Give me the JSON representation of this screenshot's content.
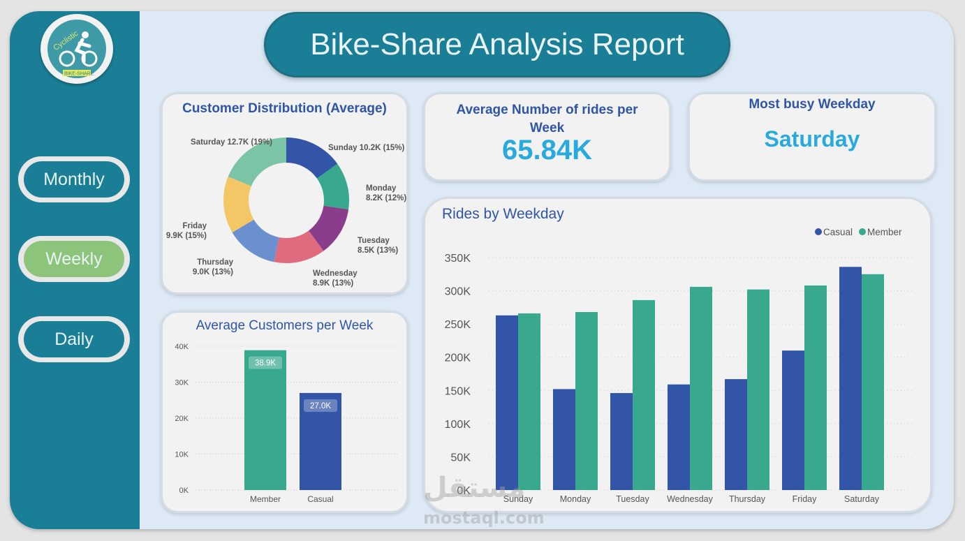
{
  "logo": {
    "text_top": "Cyclistic",
    "text_bottom": "BIKE-SHARE"
  },
  "header": {
    "title": "Bike-Share Analysis Report"
  },
  "nav": [
    {
      "label": "Monthly",
      "active": false
    },
    {
      "label": "Weekly",
      "active": true
    },
    {
      "label": "Daily",
      "active": false
    }
  ],
  "kpis": {
    "avg_rides_title": "Average Number of rides per Week",
    "avg_rides_value": "65.84K",
    "busy_title": "Most busy Weekday",
    "busy_value": "Saturday"
  },
  "watermark": {
    "text_ar": "مستقل",
    "text": "mostaql.com"
  },
  "colors": {
    "sidebar": "#1a7f96",
    "casual": "#3355a8",
    "member": "#38a88f",
    "accent": "#29aadc",
    "active_nav": "#8dc47b"
  },
  "chart_data": [
    {
      "type": "pie",
      "title": "Customer Distribution (Average)",
      "donut": true,
      "slices": [
        {
          "label": "Sunday",
          "value_label": "10.2K",
          "pct": "15%",
          "value": 10.2,
          "color": "#3355a8"
        },
        {
          "label": "Monday",
          "value_label": "8.2K",
          "pct": "12%",
          "value": 8.2,
          "color": "#38a88f"
        },
        {
          "label": "Tuesday",
          "value_label": "8.5K",
          "pct": "13%",
          "value": 8.5,
          "color": "#8a3d8a"
        },
        {
          "label": "Wednesday",
          "value_label": "8.9K",
          "pct": "13%",
          "value": 8.9,
          "color": "#e06b7d"
        },
        {
          "label": "Thursday",
          "value_label": "9.0K",
          "pct": "13%",
          "value": 9.0,
          "color": "#6a90d0"
        },
        {
          "label": "Friday",
          "value_label": "9.9K",
          "pct": "15%",
          "value": 9.9,
          "color": "#f3c766"
        },
        {
          "label": "Saturday",
          "value_label": "12.7K",
          "pct": "19%",
          "value": 12.7,
          "color": "#7cc4a6"
        }
      ]
    },
    {
      "type": "bar",
      "title": "Average Customers per Week",
      "categories": [
        "Member",
        "Casual"
      ],
      "values": [
        38.9,
        27.0
      ],
      "data_labels": [
        "38.9K",
        "27.0K"
      ],
      "colors": [
        "#38a88f",
        "#3355a8"
      ],
      "yticks": [
        "0K",
        "10K",
        "20K",
        "30K",
        "40K"
      ],
      "ylim": [
        0,
        40
      ],
      "grid": true
    },
    {
      "type": "bar",
      "title": "Rides by Weekday",
      "categories": [
        "Sunday",
        "Monday",
        "Tuesday",
        "Wednesday",
        "Thursday",
        "Friday",
        "Saturday"
      ],
      "series": [
        {
          "name": "Casual",
          "values": [
            263,
            152,
            146,
            159,
            167,
            210,
            336
          ]
        },
        {
          "name": "Member",
          "values": [
            266,
            268,
            286,
            306,
            302,
            308,
            325
          ]
        }
      ],
      "yticks": [
        "0K",
        "50K",
        "100K",
        "150K",
        "200K",
        "250K",
        "300K",
        "350K"
      ],
      "ylim": [
        0,
        350
      ],
      "legend": "top-right",
      "grid": true
    }
  ]
}
